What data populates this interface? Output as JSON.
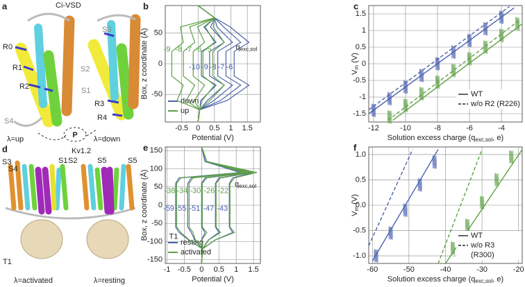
{
  "figure": {
    "a": {
      "label": "a",
      "title": "Ci-VSD",
      "residues": [
        "R0",
        "R1",
        "R2",
        "R3",
        "R4"
      ],
      "segments": [
        "S2",
        "S3",
        "S1",
        "S4"
      ],
      "states": [
        "λ=up",
        "λ=down"
      ],
      "marker": "P"
    },
    "d": {
      "label": "d",
      "title": "Kv1.2",
      "segments": [
        "S3",
        "S4",
        "S1",
        "S2",
        "S5",
        "S5"
      ],
      "domain": "T1",
      "states": [
        "λ=activated",
        "λ=resting"
      ]
    }
  },
  "chart_data": [
    {
      "type": "line",
      "label": "b",
      "x_label": "Potential (V)",
      "y_label": "Box, z coordinate (Å)",
      "xlim": [
        -1.0,
        1.9
      ],
      "xticks": [
        -0.5,
        0,
        0.5,
        1,
        1.5
      ],
      "ylim": [
        -95,
        95
      ],
      "yticks": [
        -50,
        0,
        50
      ],
      "grid": true,
      "legend": "lower left",
      "z": [
        -95,
        -75,
        -60,
        -35,
        -20,
        0,
        20,
        35,
        60,
        75,
        95
      ],
      "series": [
        {
          "name": "down",
          "color": "#4a62ae",
          "charges": [
            -10,
            -9,
            -8,
            -7,
            -6
          ],
          "profiles": [
            [
              0,
              0.05,
              0.08,
              0.55,
              0.1,
              0.1,
              0.1,
              0.55,
              0.18,
              0.5,
              0
            ],
            [
              0,
              0.05,
              0.28,
              0.8,
              0.35,
              0.35,
              0.35,
              0.8,
              0.38,
              0.5,
              0
            ],
            [
              0,
              0.05,
              0.48,
              1.05,
              0.6,
              0.6,
              0.6,
              1.05,
              0.58,
              0.5,
              0
            ],
            [
              0,
              0.05,
              0.68,
              1.3,
              0.85,
              0.85,
              0.85,
              1.3,
              0.78,
              0.5,
              0
            ],
            [
              0,
              0.05,
              0.88,
              1.55,
              1.1,
              1.1,
              1.1,
              1.55,
              0.98,
              0.5,
              0
            ]
          ]
        },
        {
          "name": "up",
          "color": "#5ea045",
          "charges": [
            -9,
            -8,
            -7,
            -6,
            -5
          ],
          "profiles": [
            [
              0,
              0.05,
              -0.64,
              -0.45,
              -0.8,
              -0.8,
              -0.8,
              -0.45,
              -0.54,
              0.5,
              0
            ],
            [
              0,
              0.05,
              -0.36,
              -0.1,
              -0.45,
              -0.45,
              -0.45,
              -0.1,
              -0.26,
              0.5,
              0
            ],
            [
              0,
              0.05,
              -0.12,
              0.2,
              -0.15,
              -0.15,
              -0.15,
              0.2,
              -0.02,
              0.5,
              0
            ],
            [
              0,
              0.05,
              0.12,
              0.5,
              0.15,
              0.15,
              0.15,
              0.5,
              0.22,
              0.5,
              0
            ],
            [
              0,
              0.05,
              0.36,
              0.8,
              0.45,
              0.45,
              0.45,
              0.8,
              0.46,
              0.5,
              0
            ]
          ]
        }
      ],
      "annotations": [
        {
          "text": "q",
          "sub": "exc,sol"
        }
      ]
    },
    {
      "type": "scatter",
      "label": "c",
      "x_label": {
        "text": "Solution excess charge (q",
        "sub": "exc,sol",
        "tail": ", e)"
      },
      "y_label": {
        "text": "V",
        "sub": "m",
        "tail": " (V)"
      },
      "xlim": [
        -12.3,
        -2.7
      ],
      "xticks": [
        -12,
        -10,
        -8,
        -6,
        -4
      ],
      "ylim": [
        -1.75,
        1.75
      ],
      "yticks": [
        -1.5,
        -1,
        -0.5,
        0,
        0.5,
        1,
        1.5
      ],
      "grid": true,
      "legend": "lower right",
      "series": [
        {
          "color": "#4a62ae",
          "x": [
            -12,
            -11,
            -10,
            -9,
            -8,
            -7,
            -6,
            -5,
            -4
          ],
          "values": [
            -1.4,
            -1.05,
            -0.7,
            -0.35,
            0,
            0.35,
            0.7,
            1.05,
            1.4
          ]
        },
        {
          "color": "#5ea045",
          "x": [
            -11,
            -10,
            -9,
            -8,
            -7,
            -6,
            -5,
            -4,
            -3
          ],
          "values": [
            -1.6,
            -1.25,
            -0.9,
            -0.55,
            -0.2,
            0.15,
            0.5,
            0.85,
            1.2
          ]
        }
      ],
      "fits": [
        {
          "color": "#4a62ae",
          "dash": false,
          "x": [
            -12.3,
            -3.2
          ],
          "values": [
            -1.5,
            1.68
          ]
        },
        {
          "color": "#4a62ae",
          "dash": true,
          "x": [
            -12.3,
            -3.5
          ],
          "values": [
            -1.38,
            1.72
          ]
        },
        {
          "color": "#5ea045",
          "dash": false,
          "x": [
            -10.8,
            -2.7
          ],
          "values": [
            -1.7,
            1.2
          ]
        },
        {
          "color": "#5ea045",
          "dash": true,
          "x": [
            -11.1,
            -2.9
          ],
          "values": [
            -1.7,
            1.3
          ]
        }
      ],
      "legend_entries": [
        {
          "label": [
            "WT"
          ],
          "dash": false
        },
        {
          "label": [
            "w/o R2 (R226)"
          ],
          "dash": true
        }
      ]
    },
    {
      "type": "line",
      "label": "e",
      "x_label": "Potential (V)",
      "y_label": "Box, z coordinate (Å)",
      "xlim": [
        -1.05,
        1.7
      ],
      "xticks": [
        -1,
        -0.5,
        0,
        0.5,
        1,
        1.5
      ],
      "ylim": [
        -160,
        160
      ],
      "yticks": [
        -150,
        -100,
        -50,
        0,
        50,
        100,
        150
      ],
      "grid": true,
      "legend": "lower left",
      "z": [
        -160,
        -120,
        -95,
        -75,
        -60,
        0,
        60,
        75,
        90,
        120,
        160
      ],
      "series": [
        {
          "name": "resting",
          "color": "#4a62ae",
          "charges": [
            -59,
            -55,
            -51,
            -47,
            -43
          ],
          "profiles": [
            [
              0,
              0.02,
              -0.38,
              -0.65,
              -0.75,
              -0.75,
              -0.75,
              -0.65,
              1.11,
              0.1,
              0
            ],
            [
              0,
              0.02,
              -0.2,
              -0.3,
              -0.4,
              -0.4,
              -0.4,
              -0.3,
              1.2,
              0.1,
              0
            ],
            [
              0,
              0.02,
              0,
              0.1,
              0,
              0,
              0,
              0.1,
              1.3,
              0.1,
              0
            ],
            [
              0,
              0.02,
              0.2,
              0.5,
              0.4,
              0.4,
              0.4,
              0.5,
              1.4,
              0.1,
              0
            ],
            [
              0,
              0.02,
              0.4,
              0.9,
              0.8,
              0.8,
              0.8,
              0.9,
              1.5,
              0.1,
              0
            ]
          ]
        },
        {
          "name": "activated",
          "color": "#5ea045",
          "charges": [
            -38,
            -34,
            -30,
            -26,
            -22
          ],
          "profiles": [
            [
              0,
              0.03,
              -0.36,
              -0.6,
              -0.72,
              -0.72,
              -0.72,
              -0.6,
              1.2,
              0.15,
              0
            ],
            [
              0,
              0.03,
              -0.18,
              -0.25,
              -0.36,
              -0.36,
              -0.36,
              -0.25,
              1.3,
              0.15,
              0
            ],
            [
              0,
              0.03,
              0.01,
              0.15,
              0.02,
              0.02,
              0.02,
              0.15,
              1.4,
              0.15,
              0
            ],
            [
              0,
              0.03,
              0.21,
              0.55,
              0.42,
              0.42,
              0.42,
              0.55,
              1.5,
              0.15,
              0
            ],
            [
              0,
              0.03,
              0.41,
              0.95,
              0.82,
              0.82,
              0.82,
              0.95,
              1.6,
              0.15,
              0
            ]
          ]
        }
      ],
      "annotations": [
        {
          "text": "q",
          "sub": "exc,sol"
        },
        {
          "text": "T1"
        }
      ]
    },
    {
      "type": "scatter",
      "label": "f",
      "x_label": {
        "text": "Solution excess charge (q",
        "sub": "exc,sol",
        "tail": ", e)"
      },
      "y_label": {
        "text": "V",
        "sub": "m",
        "tail": " (V)"
      },
      "xlim": [
        -61,
        -19
      ],
      "xticks": [
        -60,
        -50,
        -40,
        -30,
        -20
      ],
      "ylim": [
        -1.15,
        1.15
      ],
      "yticks": [
        {
          "value": -1,
          "label": "-1.0"
        },
        {
          "value": -0.5,
          "label": "-0.5"
        },
        {
          "value": 0,
          "label": "0.0"
        },
        {
          "value": 0.5,
          "label": "0.5"
        },
        {
          "value": 1,
          "label": "1.0"
        }
      ],
      "grid": true,
      "legend": "lower right",
      "series": [
        {
          "color": "#4a62ae",
          "x": [
            -59,
            -55,
            -51,
            -47,
            -43
          ],
          "values": [
            -1.0,
            -0.55,
            -0.1,
            0.4,
            0.85
          ]
        },
        {
          "color": "#5ea045",
          "x": [
            -38,
            -34,
            -30,
            -26,
            -22
          ],
          "values": [
            -0.85,
            -0.4,
            0.05,
            0.5,
            0.95
          ]
        }
      ],
      "fits": [
        {
          "color": "#4a62ae",
          "dash": false,
          "x": [
            -60,
            -42
          ],
          "values": [
            -1.1,
            1.1
          ]
        },
        {
          "color": "#4a62ae",
          "dash": true,
          "x": [
            -61,
            -49
          ],
          "values": [
            -0.8,
            1.1
          ]
        },
        {
          "color": "#5ea045",
          "dash": false,
          "x": [
            -40,
            -19
          ],
          "values": [
            -1.15,
            1.1
          ]
        },
        {
          "color": "#5ea045",
          "dash": true,
          "x": [
            -42,
            -30
          ],
          "values": [
            -1.15,
            1.1
          ]
        }
      ],
      "legend_entries": [
        {
          "label": [
            "WT"
          ],
          "dash": false
        },
        {
          "label": [
            "w/o R3",
            "(R300)"
          ],
          "dash": true
        }
      ]
    }
  ]
}
